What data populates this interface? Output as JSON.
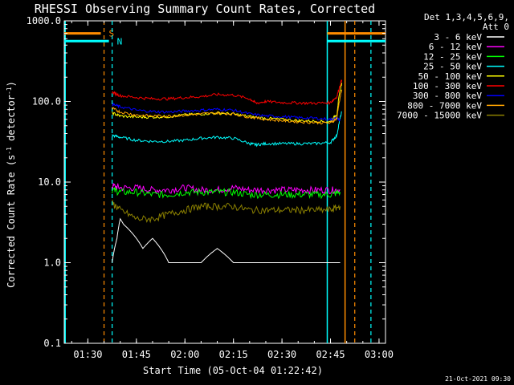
{
  "chart_data": {
    "type": "line",
    "title": "RHESSI Observing Summary Count Rates, Corrected",
    "xlabel": "Start Time (05-Oct-04 01:22:42)",
    "ylabel": "Corrected Count Rate (s",
    "ylabel_sup1": "-1",
    "ylabel_mid": " detector",
    "ylabel_sup2": "-1",
    "ylabel_end": ")",
    "yscale": "log",
    "ylim": [
      0.1,
      1000
    ],
    "xlim": [
      "01:22:42",
      "03:02:00"
    ],
    "x_ticks": [
      {
        "t": "01:30",
        "label": "01:30"
      },
      {
        "t": "01:45",
        "label": "01:45"
      },
      {
        "t": "02:00",
        "label": "02:00"
      },
      {
        "t": "02:15",
        "label": "02:15"
      },
      {
        "t": "02:30",
        "label": "02:30"
      },
      {
        "t": "02:45",
        "label": "02:45"
      },
      {
        "t": "03:00",
        "label": "03:00"
      }
    ],
    "y_ticks": [
      {
        "v": 1000,
        "label": "1000.0"
      },
      {
        "v": 100,
        "label": "100.0"
      },
      {
        "v": 10,
        "label": "10.0"
      },
      {
        "v": 1,
        "label": "1.0"
      },
      {
        "v": 0.1,
        "label": "0.1"
      }
    ],
    "legend_header": [
      "Det 1,3,4,5,6,9,",
      "Att 0"
    ],
    "series": [
      {
        "name": "3 - 6 keV",
        "color": "#ffffff",
        "x": [
          "01:37:30",
          "01:39:00",
          "01:40:00",
          "01:41:00",
          "01:43:00",
          "01:45:00",
          "01:47:00",
          "01:50:00",
          "01:55:00",
          "02:00:00",
          "02:05:00",
          "02:10:00",
          "02:15:00",
          "02:20:00",
          "02:25:00",
          "02:30:00",
          "02:35:00",
          "02:40:00",
          "02:45:00",
          "02:48:00"
        ],
        "y": [
          1.0,
          2.0,
          3.5,
          3.0,
          2.5,
          2.0,
          1.5,
          2.0,
          1.0,
          1.0,
          1.0,
          1.5,
          1.0,
          1.0,
          1.0,
          1.0,
          1.0,
          1.0,
          1.0,
          1.0
        ]
      },
      {
        "name": "6 - 12 keV",
        "color": "#ff00ff",
        "x": [
          "01:37:30",
          "01:40:00",
          "01:45:00",
          "01:50:00",
          "01:55:00",
          "02:00:00",
          "02:05:00",
          "02:10:00",
          "02:15:00",
          "02:20:00",
          "02:25:00",
          "02:30:00",
          "02:35:00",
          "02:40:00",
          "02:45:00",
          "02:48:00"
        ],
        "y": [
          9.0,
          8.5,
          8.5,
          8.0,
          8.0,
          8.5,
          8.0,
          8.0,
          8.5,
          8.0,
          8.0,
          8.0,
          8.0,
          8.0,
          8.0,
          8.0
        ]
      },
      {
        "name": "12 - 25 keV",
        "color": "#00ff00",
        "x": [
          "01:37:30",
          "01:40:00",
          "01:45:00",
          "01:50:00",
          "01:55:00",
          "02:00:00",
          "02:05:00",
          "02:10:00",
          "02:15:00",
          "02:20:00",
          "02:25:00",
          "02:30:00",
          "02:35:00",
          "02:40:00",
          "02:45:00",
          "02:48:00"
        ],
        "y": [
          8.0,
          7.5,
          7.5,
          7.0,
          7.0,
          7.5,
          7.5,
          7.5,
          7.5,
          7.0,
          7.0,
          7.0,
          7.0,
          7.0,
          7.0,
          7.5
        ]
      },
      {
        "name": "25 - 50 keV",
        "color": "#00ffff",
        "x": [
          "01:37:30",
          "01:40:00",
          "01:45:00",
          "01:50:00",
          "01:55:00",
          "02:00:00",
          "02:05:00",
          "02:10:00",
          "02:15:00",
          "02:20:00",
          "02:22:00",
          "02:25:00",
          "02:30:00",
          "02:35:00",
          "02:40:00",
          "02:45:00",
          "02:47:00",
          "02:48:30"
        ],
        "y": [
          38,
          36,
          33,
          32,
          32,
          33,
          35,
          36,
          35,
          30,
          29,
          30,
          30,
          30,
          30,
          31,
          38,
          75
        ]
      },
      {
        "name": "50 - 100 keV",
        "color": "#ffff00",
        "x": [
          "01:37:30",
          "01:40:00",
          "01:45:00",
          "01:50:00",
          "01:55:00",
          "02:00:00",
          "02:05:00",
          "02:10:00",
          "02:15:00",
          "02:20:00",
          "02:25:00",
          "02:30:00",
          "02:35:00",
          "02:40:00",
          "02:45:00",
          "02:47:00",
          "02:48:30"
        ],
        "y": [
          72,
          66,
          64,
          64,
          65,
          68,
          70,
          72,
          70,
          65,
          62,
          60,
          58,
          57,
          56,
          70,
          170
        ]
      },
      {
        "name": "100 - 300 keV",
        "color": "#ff0000",
        "x": [
          "01:37:30",
          "01:40:00",
          "01:45:00",
          "01:50:00",
          "01:55:00",
          "02:00:00",
          "02:05:00",
          "02:10:00",
          "02:15:00",
          "02:20:00",
          "02:22:00",
          "02:25:00",
          "02:30:00",
          "02:35:00",
          "02:40:00",
          "02:45:00",
          "02:47:00",
          "02:48:30"
        ],
        "y": [
          130,
          118,
          112,
          108,
          108,
          112,
          115,
          122,
          120,
          108,
          95,
          100,
          97,
          96,
          95,
          97,
          115,
          185
        ]
      },
      {
        "name": "300 - 800 keV",
        "color": "#0000ff",
        "x": [
          "01:37:30",
          "01:40:00",
          "01:45:00",
          "01:50:00",
          "01:55:00",
          "02:00:00",
          "02:05:00",
          "02:10:00",
          "02:15:00",
          "02:20:00",
          "02:25:00",
          "02:30:00",
          "02:35:00",
          "02:40:00",
          "02:45:00",
          "02:47:00",
          "02:48:00"
        ],
        "y": [
          92,
          86,
          78,
          75,
          74,
          76,
          78,
          80,
          78,
          70,
          66,
          65,
          63,
          62,
          60,
          62,
          58
        ]
      },
      {
        "name": "800 - 7000 keV",
        "color": "#ffa500",
        "x": [
          "01:37:30",
          "01:40:00",
          "01:45:00",
          "01:50:00",
          "01:55:00",
          "02:00:00",
          "02:05:00",
          "02:10:00",
          "02:15:00",
          "02:20:00",
          "02:25:00",
          "02:30:00",
          "02:35:00",
          "02:40:00",
          "02:45:00",
          "02:47:00",
          "02:48:30"
        ],
        "y": [
          82,
          74,
          68,
          66,
          66,
          68,
          70,
          72,
          70,
          64,
          60,
          58,
          56,
          55,
          54,
          62,
          140
        ]
      },
      {
        "name": "7000 - 15000 keV",
        "color": "#8b8000",
        "x": [
          "01:37:30",
          "01:40:00",
          "01:45:00",
          "01:50:00",
          "01:55:00",
          "02:00:00",
          "02:05:00",
          "02:10:00",
          "02:15:00",
          "02:20:00",
          "02:25:00",
          "02:30:00",
          "02:35:00",
          "02:40:00",
          "02:45:00",
          "02:48:00"
        ],
        "y": [
          5.5,
          4.5,
          3.5,
          3.5,
          4.0,
          4.5,
          5.0,
          5.0,
          5.0,
          4.5,
          4.5,
          4.5,
          4.5,
          4.5,
          4.5,
          5.0
        ]
      }
    ],
    "flags": [
      {
        "label": "S",
        "color": "#ff8c00",
        "dashed": true,
        "start": "01:35:00",
        "end": "02:52:30",
        "y": 700
      },
      {
        "label": "N",
        "color": "#00ffff",
        "dashed": true,
        "start": "01:37:30",
        "end": "02:57:30",
        "y": 560
      }
    ],
    "marker_lines": [
      {
        "t": "01:23:00",
        "color": "#00ffff",
        "dashed": false
      },
      {
        "t": "02:44:00",
        "color": "#00ffff",
        "dashed": false
      },
      {
        "t": "02:49:30",
        "color": "#ff8c00",
        "dashed": false
      }
    ],
    "footer": "21-Oct-2021 09:30"
  }
}
